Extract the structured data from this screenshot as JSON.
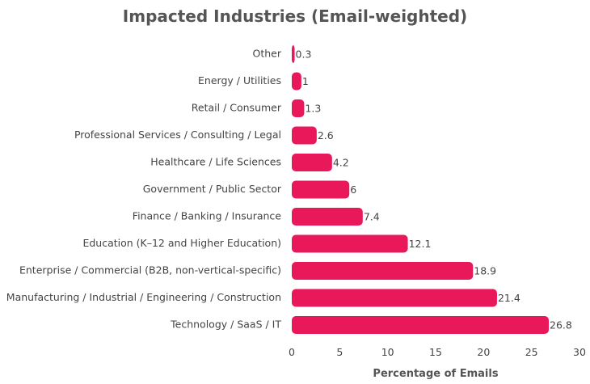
{
  "chart_data": {
    "type": "bar",
    "orientation": "horizontal",
    "title": "Impacted Industries (Email-weighted)",
    "xlabel": "Percentage of Emails",
    "ylabel": "",
    "xlim": [
      0,
      30
    ],
    "xticks": [
      0,
      5,
      10,
      15,
      20,
      25,
      30
    ],
    "grid": false,
    "bar_color": "#e8185b",
    "categories": [
      "Other",
      "Energy / Utilities",
      "Retail / Consumer",
      "Professional Services / Consulting / Legal",
      "Healthcare / Life Sciences",
      "Government / Public Sector",
      "Finance / Banking / Insurance",
      "Education (K–12 and Higher Education)",
      "Enterprise / Commercial (B2B, non-vertical-specific)",
      "Manufacturing / Industrial / Engineering / Construction",
      "Technology / SaaS / IT"
    ],
    "values": [
      0.3,
      1,
      1.3,
      2.6,
      4.2,
      6,
      7.4,
      12.1,
      18.9,
      21.4,
      26.8
    ],
    "value_labels": [
      "0.3",
      "1",
      "1.3",
      "2.6",
      "4.2",
      "6",
      "7.4",
      "12.1",
      "18.9",
      "21.4",
      "26.8"
    ]
  }
}
